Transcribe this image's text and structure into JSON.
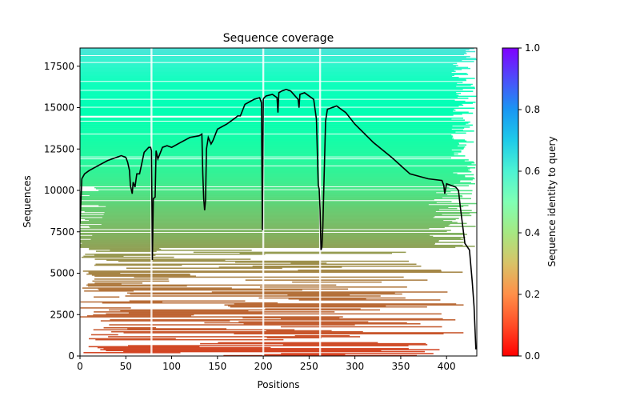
{
  "chart_data": {
    "type": "heatmap",
    "title": "Sequence coverage",
    "xlabel": "Positions",
    "ylabel": "Sequences",
    "xlim": [
      0,
      433
    ],
    "ylim": [
      0,
      18600
    ],
    "xticks": [
      0,
      50,
      100,
      150,
      200,
      250,
      300,
      350,
      400
    ],
    "yticks": [
      0,
      2500,
      5000,
      7500,
      10000,
      12500,
      15000,
      17500
    ],
    "colorbar": {
      "label": "Sequence identity to query",
      "range": [
        0,
        1
      ],
      "ticks": [
        "0.0",
        "0.2",
        "0.4",
        "0.6",
        "0.8",
        "1.0"
      ],
      "colormap": "rainbow_r"
    },
    "identity_by_sequence_row": [
      [
        0,
        0.08
      ],
      [
        2000,
        0.12
      ],
      [
        4000,
        0.15
      ],
      [
        6000,
        0.2
      ],
      [
        7500,
        0.25
      ],
      [
        9000,
        0.3
      ],
      [
        10500,
        0.38
      ],
      [
        12000,
        0.43
      ],
      [
        13500,
        0.47
      ],
      [
        15000,
        0.5
      ],
      [
        16500,
        0.53
      ],
      [
        17500,
        0.58
      ],
      [
        18600,
        0.65
      ]
    ],
    "coverage_line": {
      "x": [
        0,
        2,
        5,
        10,
        20,
        30,
        40,
        45,
        50,
        52,
        54,
        55,
        57,
        58,
        60,
        62,
        65,
        70,
        75,
        77,
        78,
        79,
        80,
        82,
        83,
        85,
        90,
        95,
        100,
        110,
        120,
        130,
        133,
        134,
        135,
        136,
        137,
        138,
        140,
        143,
        145,
        150,
        160,
        170,
        172,
        175,
        180,
        190,
        196,
        198,
        199,
        200,
        201,
        203,
        210,
        215,
        216,
        217,
        220,
        225,
        230,
        238,
        239,
        240,
        245,
        255,
        258,
        260,
        261,
        262,
        263,
        264,
        265,
        266,
        268,
        270,
        280,
        290,
        300,
        320,
        340,
        360,
        380,
        395,
        397,
        398,
        400,
        405,
        410,
        413,
        415,
        420,
        425,
        428,
        430,
        432
      ],
      "y": [
        8000,
        10700,
        11000,
        11200,
        11500,
        11800,
        12000,
        12100,
        12000,
        11700,
        11200,
        10300,
        9800,
        10500,
        10200,
        11000,
        11000,
        12300,
        12600,
        12600,
        12400,
        5800,
        9500,
        9600,
        12400,
        11900,
        12600,
        12700,
        12600,
        12900,
        13200,
        13300,
        13400,
        11000,
        9500,
        8800,
        9400,
        12500,
        13200,
        12800,
        13000,
        13700,
        14000,
        14400,
        14500,
        14500,
        15200,
        15500,
        15600,
        15300,
        7600,
        15500,
        15600,
        15700,
        15800,
        15600,
        14700,
        15900,
        16000,
        16100,
        16000,
        15500,
        15000,
        15800,
        15900,
        15500,
        14300,
        10300,
        10100,
        8800,
        6400,
        6600,
        7800,
        10000,
        14200,
        14900,
        15100,
        14700,
        14000,
        12900,
        12000,
        11000,
        10700,
        10600,
        10300,
        9800,
        10400,
        10300,
        10200,
        10000,
        9000,
        6800,
        6400,
        4500,
        3000,
        400
      ],
      "color": "#000000"
    },
    "gap_columns": [
      78,
      200,
      262
    ],
    "background_color": "#ffffff"
  }
}
